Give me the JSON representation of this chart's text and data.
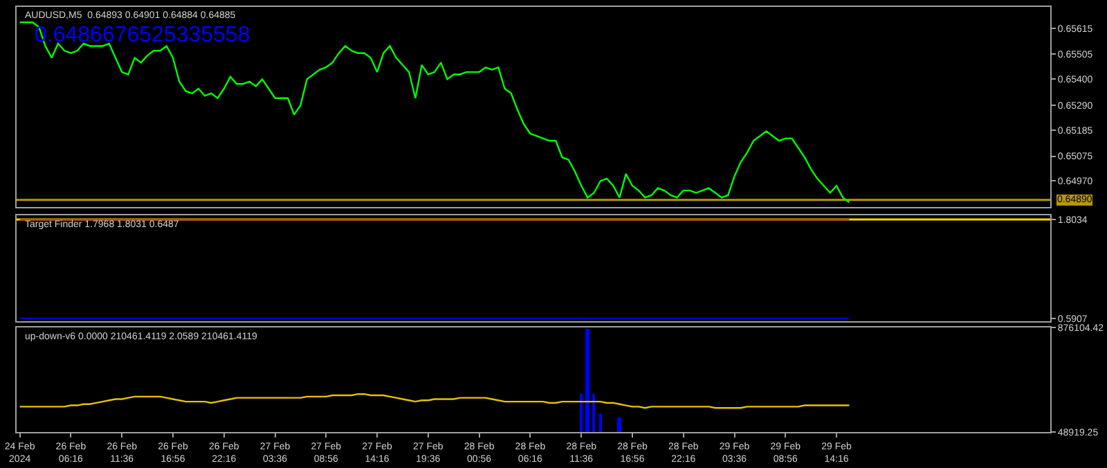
{
  "chart_data": [
    {
      "type": "line",
      "title": "AUDUSD,M5  0.64893 0.64901 0.64884 0.64885",
      "annotations": [
        "0.6486676525335558"
      ],
      "categories": [
        null,
        null,
        null,
        null,
        null,
        null,
        null,
        null,
        null,
        null,
        null,
        null,
        null,
        null,
        null,
        null,
        null,
        null,
        null,
        null,
        null,
        null,
        null,
        null,
        null,
        null,
        null,
        null,
        null,
        null,
        null,
        null,
        null,
        null,
        null,
        null,
        null,
        null,
        null,
        null,
        null,
        null,
        null,
        null,
        null,
        null,
        null,
        null,
        null,
        null,
        null,
        null,
        null,
        null,
        null,
        null,
        null,
        null,
        null,
        null,
        null,
        null,
        null,
        null,
        null,
        null,
        null,
        null,
        null,
        null,
        null,
        null,
        null,
        null,
        null,
        null,
        null,
        null,
        null,
        null,
        null,
        null,
        null,
        null,
        null,
        null,
        null,
        null,
        null,
        null,
        null,
        null,
        null,
        null,
        null,
        null,
        null,
        null,
        null,
        null,
        null,
        null,
        null,
        null,
        null,
        null,
        null,
        null,
        null,
        null,
        null,
        null,
        null,
        null,
        null,
        null,
        null,
        null,
        null,
        null,
        null,
        null,
        null,
        null,
        null,
        null,
        null,
        null,
        null,
        null,
        null,
        null,
        null,
        null,
        null,
        null,
        null,
        null,
        null,
        null,
        null,
        null,
        null,
        null,
        null,
        null,
        null,
        null,
        null,
        null,
        null,
        null,
        null,
        null,
        null,
        null,
        null,
        null,
        null,
        null,
        null,
        null
      ],
      "series": [
        {
          "color": "#00ff00",
          "values": [
            0.6564,
            0.6564,
            0.6564,
            0.6562,
            0.6554,
            0.6549,
            0.6555,
            0.6552,
            0.6551,
            0.6552,
            0.6555,
            0.6554,
            0.6554,
            0.6554,
            0.6555,
            0.6549,
            0.6543,
            0.6542,
            0.6549,
            0.6547,
            0.655,
            0.6552,
            0.6552,
            0.6554,
            0.6549,
            0.6539,
            0.6535,
            0.6534,
            0.6536,
            0.6533,
            0.6534,
            0.6532,
            0.6536,
            0.6541,
            0.6538,
            0.6538,
            0.6539,
            0.6537,
            0.654,
            0.6536,
            0.6532,
            0.6532,
            0.6532,
            0.6525,
            0.6529,
            0.654,
            0.6542,
            0.6544,
            0.6545,
            0.6547,
            0.6551,
            0.6554,
            0.6552,
            0.6551,
            0.6551,
            0.6549,
            0.6543,
            0.6551,
            0.6554,
            0.6549,
            0.6546,
            0.6543,
            0.6532,
            0.6546,
            0.6542,
            0.6543,
            0.6547,
            0.654,
            0.6542,
            0.6542,
            0.6543,
            0.6543,
            0.6543,
            0.6545,
            0.6544,
            0.6545,
            0.6536,
            0.6534,
            0.6527,
            0.6521,
            0.6517,
            0.6516,
            0.6515,
            0.6514,
            0.6514,
            0.6507,
            0.6506,
            0.6501,
            0.6495,
            0.649,
            0.6492,
            0.6497,
            0.6498,
            0.6495,
            0.649,
            0.65,
            0.6495,
            0.6493,
            0.649,
            0.6491,
            0.6494,
            0.6493,
            0.6491,
            0.649,
            0.6493,
            0.6493,
            0.6492,
            0.6493,
            0.6494,
            0.6492,
            0.649,
            0.6491,
            0.6499,
            0.6505,
            0.6509,
            0.6514,
            0.6516,
            0.6518,
            0.6516,
            0.6514,
            0.6515,
            0.6515,
            0.6511,
            0.6507,
            0.6502,
            0.6498,
            0.6495,
            0.6492,
            0.6495,
            0.649,
            0.6488,
            null,
            null,
            null,
            null,
            null,
            null,
            null,
            null,
            null,
            null,
            null,
            null,
            null,
            null,
            null,
            null,
            null,
            null,
            null,
            null,
            null,
            null,
            null,
            null,
            null,
            null,
            null,
            null,
            null,
            null,
            null
          ]
        }
      ],
      "ylim": [
        0.64859,
        0.65705
      ],
      "yticks": [
        {
          "value": 0.6497,
          "label": "0.64970"
        },
        0.65075,
        0.65185,
        {
          "value": 0.6529,
          "label": "0.65290"
        },
        {
          "value": 0.654,
          "label": "0.65400"
        },
        0.65505,
        0.65615
      ],
      "ref_lines": [
        {
          "axis": "y",
          "value": 0.6489,
          "label": "0.64890",
          "color": "#b8960b"
        }
      ],
      "tick_labels": "y",
      "grid": false
    },
    {
      "type": "line",
      "title": "Target Finder 1.7968 1.8031 0.6487",
      "categories": [
        null,
        null,
        null,
        null,
        null,
        null,
        null,
        null,
        null,
        null,
        null,
        null,
        null,
        null,
        null,
        null,
        null,
        null,
        null,
        null,
        null,
        null,
        null,
        null,
        null,
        null,
        null,
        null,
        null,
        null,
        null,
        null,
        null,
        null,
        null,
        null,
        null,
        null,
        null,
        null,
        null,
        null,
        null,
        null,
        null,
        null,
        null,
        null,
        null,
        null,
        null,
        null,
        null,
        null,
        null,
        null,
        null,
        null,
        null,
        null,
        null,
        null,
        null,
        null,
        null,
        null,
        null,
        null,
        null,
        null,
        null,
        null,
        null,
        null,
        null,
        null,
        null,
        null,
        null,
        null,
        null,
        null,
        null,
        null,
        null,
        null,
        null,
        null,
        null,
        null,
        null,
        null,
        null,
        null,
        null,
        null,
        null,
        null,
        null,
        null,
        null,
        null,
        null,
        null,
        null,
        null,
        null,
        null,
        null,
        null,
        null,
        null,
        null,
        null,
        null,
        null,
        null,
        null,
        null,
        null,
        null,
        null,
        null,
        null,
        null,
        null,
        null,
        null,
        null,
        null,
        null,
        null,
        null,
        null,
        null,
        null,
        null,
        null,
        null,
        null,
        null,
        null,
        null,
        null,
        null,
        null,
        null,
        null,
        null,
        null,
        null,
        null,
        null,
        null,
        null,
        null,
        null,
        null,
        null,
        null,
        null,
        null
      ],
      "series": [
        {
          "color": "#b03a2e",
          "values": [
            1.8,
            1.8,
            1.8,
            1.8,
            1.8,
            1.8,
            1.8,
            1.8,
            1.8,
            1.8,
            1.8,
            1.8,
            1.8,
            1.8,
            1.8,
            1.8,
            1.8,
            1.8,
            1.8,
            1.8,
            1.8,
            1.8,
            1.8,
            1.8,
            1.8,
            1.8,
            1.8,
            1.8,
            1.8,
            1.8,
            1.8,
            1.8,
            1.8,
            1.8,
            1.8,
            1.8,
            1.8,
            1.8,
            1.8,
            1.8,
            1.8,
            1.8,
            1.8,
            1.8,
            1.8,
            1.8,
            1.8,
            1.8,
            1.8,
            1.8,
            1.8,
            1.8,
            1.8,
            1.8,
            1.8,
            1.8,
            1.8,
            1.8,
            1.8,
            1.8,
            1.8,
            1.8,
            1.8,
            1.8,
            1.8,
            1.8,
            1.8,
            1.8,
            1.8,
            1.8,
            1.8,
            1.8,
            1.8,
            1.8,
            1.8,
            1.8,
            1.8,
            1.8,
            1.8,
            1.8,
            1.8,
            1.8,
            1.8,
            1.8,
            1.8,
            1.8,
            1.8,
            1.8,
            1.8,
            1.8,
            1.8,
            1.8,
            1.8,
            1.8,
            1.8,
            1.8,
            1.8,
            1.8,
            1.8,
            1.8,
            1.8,
            1.8,
            1.8,
            1.8,
            1.8,
            1.8,
            1.8,
            1.8,
            1.8,
            1.8,
            1.8,
            1.8,
            1.8,
            1.8,
            1.8,
            1.8,
            1.8,
            1.8,
            1.8,
            1.8,
            1.8,
            1.8,
            1.8,
            1.8,
            1.8,
            1.8,
            1.8,
            1.8,
            1.8,
            1.8,
            1.8,
            null,
            null,
            null,
            null,
            null,
            null,
            null,
            null,
            null,
            null,
            null,
            null,
            null,
            null,
            null,
            null,
            null,
            null,
            null,
            null,
            null,
            null,
            null,
            null,
            null,
            null,
            null,
            null,
            null,
            null,
            null
          ]
        },
        {
          "color": "#0000d0",
          "values": [
            0.5907,
            0.5907,
            0.5907,
            0.5907,
            0.5907,
            0.5907,
            0.5907,
            0.5907,
            0.5907,
            0.5907,
            0.5907,
            0.5907,
            0.5907,
            0.5907,
            0.5907,
            0.5907,
            0.5907,
            0.5907,
            0.5907,
            0.5907,
            0.5907,
            0.5907,
            0.5907,
            0.5907,
            0.5907,
            0.5907,
            0.5907,
            0.5907,
            0.5907,
            0.5907,
            0.5907,
            0.5907,
            0.5907,
            0.5907,
            0.5907,
            0.5907,
            0.5907,
            0.5907,
            0.5907,
            0.5907,
            0.5907,
            0.5907,
            0.5907,
            0.5907,
            0.5907,
            0.5907,
            0.5907,
            0.5907,
            0.5907,
            0.5907,
            0.5907,
            0.5907,
            0.5907,
            0.5907,
            0.5907,
            0.5907,
            0.5907,
            0.5907,
            0.5907,
            0.5907,
            0.5907,
            0.5907,
            0.5907,
            0.5907,
            0.5907,
            0.5907,
            0.5907,
            0.5907,
            0.5907,
            0.5907,
            0.5907,
            0.5907,
            0.5907,
            0.5907,
            0.5907,
            0.5907,
            0.5907,
            0.5907,
            0.5907,
            0.5907,
            0.5907,
            0.5907,
            0.5907,
            0.5907,
            0.5907,
            0.5907,
            0.5907,
            0.5907,
            0.5907,
            0.5907,
            0.5907,
            0.5907,
            0.5907,
            0.5907,
            0.5907,
            0.5907,
            0.5907,
            0.5907,
            0.5907,
            0.5907,
            0.5907,
            0.5907,
            0.5907,
            0.5907,
            0.5907,
            0.5907,
            0.5907,
            0.5907,
            0.5907,
            0.5907,
            0.5907,
            0.5907,
            0.5907,
            0.5907,
            0.5907,
            0.5907,
            0.5907,
            0.5907,
            0.5907,
            0.5907,
            0.5907,
            0.5907,
            0.5907,
            0.5907,
            0.5907,
            0.5907,
            0.5907,
            0.5907,
            0.5907,
            0.5907,
            0.5907,
            null,
            null,
            null,
            null,
            null,
            null,
            null,
            null,
            null,
            null,
            null,
            null,
            null,
            null,
            null,
            null,
            null,
            null,
            null,
            null,
            null,
            null,
            null,
            null,
            null,
            null,
            null,
            null,
            null,
            null,
            null
          ]
        }
      ],
      "ylim": [
        0.558,
        1.853
      ],
      "yticks": [
        0.5907,
        1.8034
      ],
      "ref_lines": [
        {
          "axis": "y",
          "value": 1.8034,
          "label": null,
          "color": "#ffd700"
        }
      ],
      "tick_labels": "y",
      "grid": false
    },
    {
      "type": "line",
      "title": "up-down-v6 0.0000 210461.4119 2.0589 210461.4119",
      "categories": [
        "24 Feb 2024",
        null,
        null,
        null,
        null,
        null,
        null,
        null,
        "26 Feb 06:16",
        null,
        null,
        null,
        null,
        null,
        null,
        null,
        "26 Feb 11:36",
        null,
        null,
        null,
        null,
        null,
        null,
        null,
        "26 Feb 16:56",
        null,
        null,
        null,
        null,
        null,
        null,
        null,
        "26 Feb 22:16",
        null,
        null,
        null,
        null,
        null,
        null,
        null,
        "27 Feb 03:36",
        null,
        null,
        null,
        null,
        null,
        null,
        null,
        "27 Feb 08:56",
        null,
        null,
        null,
        null,
        null,
        null,
        null,
        "27 Feb 14:16",
        null,
        null,
        null,
        null,
        null,
        null,
        null,
        "27 Feb 19:36",
        null,
        null,
        null,
        null,
        null,
        null,
        null,
        "28 Feb 00:56",
        null,
        null,
        null,
        null,
        null,
        null,
        null,
        "28 Feb 06:16",
        null,
        null,
        null,
        null,
        null,
        null,
        null,
        "28 Feb 11:36",
        null,
        null,
        null,
        null,
        null,
        null,
        null,
        "28 Feb 16:56",
        null,
        null,
        null,
        null,
        null,
        null,
        null,
        "28 Feb 22:16",
        null,
        null,
        null,
        null,
        null,
        null,
        null,
        "29 Feb 03:36",
        null,
        null,
        null,
        null,
        null,
        null,
        null,
        "29 Feb 08:56",
        null,
        null,
        null,
        null,
        null,
        null,
        null,
        "29 Feb 14:16",
        null,
        null,
        null,
        null,
        null,
        null,
        null,
        null,
        null,
        null,
        null,
        null,
        null,
        null,
        null,
        null,
        null,
        null,
        null,
        null,
        null,
        null,
        null,
        null,
        null,
        null,
        null,
        null,
        null,
        null,
        null,
        null,
        null
      ],
      "series": [
        {
          "color": "#e6c200",
          "values": [
            250000,
            250000,
            250000,
            250000,
            250000,
            250000,
            250000,
            250000,
            260000,
            260000,
            270000,
            270000,
            280000,
            290000,
            300000,
            310000,
            310000,
            320000,
            330000,
            330000,
            330000,
            330000,
            330000,
            320000,
            310000,
            300000,
            290000,
            290000,
            290000,
            290000,
            280000,
            290000,
            300000,
            310000,
            320000,
            320000,
            320000,
            320000,
            320000,
            320000,
            320000,
            320000,
            320000,
            320000,
            320000,
            330000,
            330000,
            330000,
            330000,
            340000,
            340000,
            340000,
            340000,
            350000,
            350000,
            340000,
            340000,
            340000,
            330000,
            320000,
            310000,
            300000,
            290000,
            300000,
            300000,
            310000,
            310000,
            310000,
            310000,
            320000,
            320000,
            320000,
            320000,
            320000,
            310000,
            300000,
            290000,
            290000,
            290000,
            290000,
            290000,
            290000,
            290000,
            280000,
            280000,
            290000,
            290000,
            290000,
            290000,
            290000,
            290000,
            290000,
            280000,
            280000,
            270000,
            260000,
            250000,
            250000,
            240000,
            250000,
            250000,
            250000,
            250000,
            250000,
            250000,
            250000,
            250000,
            250000,
            250000,
            240000,
            240000,
            240000,
            240000,
            240000,
            250000,
            250000,
            250000,
            250000,
            250000,
            250000,
            250000,
            250000,
            250000,
            260000,
            260000,
            260000,
            260000,
            260000,
            260000,
            260000,
            260000,
            null,
            null,
            null,
            null,
            null,
            null,
            null,
            null,
            null,
            null,
            null,
            null,
            null,
            null,
            null,
            null,
            null,
            null,
            null,
            null,
            null,
            null,
            null,
            null,
            null,
            null,
            null,
            null,
            null,
            null,
            null
          ]
        },
        {
          "type": "bar",
          "color": "#0000ff",
          "values": [
            null,
            null,
            null,
            null,
            null,
            null,
            null,
            null,
            null,
            null,
            null,
            null,
            null,
            null,
            null,
            null,
            null,
            null,
            null,
            null,
            null,
            null,
            null,
            null,
            null,
            null,
            null,
            null,
            null,
            null,
            null,
            null,
            null,
            null,
            null,
            null,
            null,
            null,
            null,
            null,
            null,
            null,
            null,
            null,
            null,
            null,
            null,
            null,
            null,
            null,
            null,
            null,
            null,
            null,
            null,
            null,
            null,
            null,
            null,
            null,
            null,
            null,
            null,
            null,
            null,
            null,
            null,
            null,
            null,
            null,
            null,
            null,
            null,
            null,
            null,
            null,
            null,
            null,
            null,
            null,
            null,
            null,
            null,
            null,
            null,
            null,
            null,
            null,
            350000,
            870000,
            350000,
            200000,
            null,
            null,
            160000,
            null,
            null,
            null,
            null,
            null,
            null,
            null,
            null,
            null,
            null,
            null,
            null,
            null,
            null,
            null,
            null,
            null,
            null,
            null,
            null,
            null,
            null,
            null,
            null,
            null,
            null,
            null,
            null,
            null,
            null,
            null,
            null,
            null,
            null,
            null,
            null,
            null,
            null,
            null,
            null,
            null,
            null,
            null,
            null,
            null,
            null,
            null,
            null,
            null,
            null,
            null,
            null,
            null,
            null,
            null,
            null,
            null,
            null,
            null,
            null,
            null,
            null,
            null,
            null,
            null,
            null,
            null
          ]
        }
      ],
      "ylim": [
        48919.25,
        876104.42
      ],
      "yticks": [
        48919.25,
        876104.42
      ],
      "grid": false
    }
  ]
}
